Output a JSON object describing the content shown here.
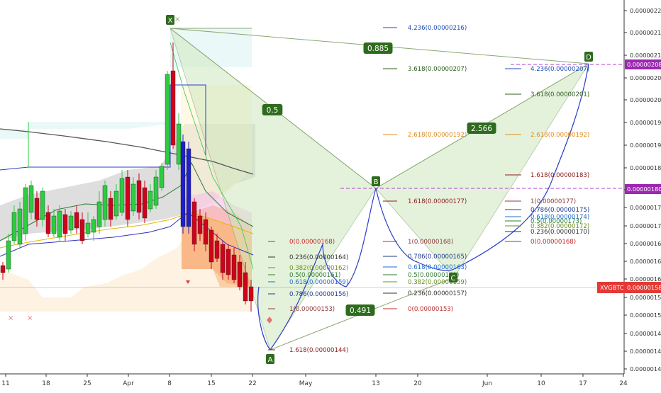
{
  "chart_data": {
    "type": "candlestick",
    "symbol": "XVGBTC",
    "last_price": "0.00000158",
    "ylim": [
      1.39e-06,
      2.22e-06
    ],
    "x_ticks": [
      "11",
      "18",
      "25",
      "Apr",
      "8",
      "15",
      "22",
      "May",
      "13",
      "20",
      "Jun",
      "10",
      "17",
      "24"
    ],
    "y_ticks": [
      "0.00000220",
      "0.00000215",
      "0.00000210",
      "0.00000205",
      "0.00000200",
      "0.00000195",
      "0.00000190",
      "0.00000185",
      "0.00000180",
      "0.00000176",
      "0.00000172",
      "0.00000168",
      "0.00000164",
      "0.00000160",
      "0.00000156",
      "0.00000152",
      "0.00000148",
      "0.00000144",
      "0.00000140"
    ],
    "price_markers": [
      {
        "label": "0.00000208",
        "color": "#9c27b0",
        "value": 2.08e-06
      },
      {
        "label": "0.00000180",
        "color": "#9c27b0",
        "value": 1.8e-06
      }
    ],
    "pattern_points": [
      {
        "label": "X",
        "value": 2.16e-06
      },
      {
        "label": "A",
        "value": 1.44e-06
      },
      {
        "label": "B",
        "value": 1.8e-06
      },
      {
        "label": "C",
        "value": 1.62e-06
      },
      {
        "label": "D",
        "value": 2.08e-06
      }
    ],
    "pattern_ratios": [
      "0.885",
      "0.5",
      "0.491",
      "2.566"
    ],
    "fib_levels": [
      {
        "label": "4.236(0.00000216)",
        "color": "#1e4fb5"
      },
      {
        "label": "3.618(0.00000207)",
        "color": "#2e5e1e"
      },
      {
        "label": "2.618(0.00000192)",
        "color": "#e08a1e"
      },
      {
        "label": "1.618(0.00000177)",
        "color": "#8b1a1a"
      },
      {
        "label": "1(0.00000168)",
        "color": "#8b3a3a"
      },
      {
        "label": "0.786(0.00000165)",
        "color": "#1e3a8a"
      },
      {
        "label": "0.618(0.00000163)",
        "color": "#1e6fd0"
      },
      {
        "label": "0.5(0.00000161)",
        "color": "#2e7d32"
      },
      {
        "label": "0.382(0.00000159)",
        "color": "#6b8e23"
      },
      {
        "label": "0.236(0.00000157)",
        "color": "#333333"
      },
      {
        "label": "0(0.00000153)",
        "color": "#c62828"
      },
      {
        "label": "0(0.00000168)",
        "color": "#c62828"
      },
      {
        "label": "0.236(0.00000164)",
        "color": "#333333"
      },
      {
        "label": "0.382(0.00000162)",
        "color": "#6b8e23"
      },
      {
        "label": "0.5(0.00000161)",
        "color": "#2e7d32"
      },
      {
        "label": "0.618(0.00000159)",
        "color": "#1e6fd0"
      },
      {
        "label": "0.786(0.00000156)",
        "color": "#1e3a8a"
      },
      {
        "label": "1(0.00000153)",
        "color": "#8b3a3a"
      },
      {
        "label": "1.618(0.00000144)",
        "color": "#8b1a1a"
      },
      {
        "label": "4.236(0.00000207)",
        "color": "#1e4fb5"
      },
      {
        "label": "3.618(0.00000201)",
        "color": "#2e5e1e"
      },
      {
        "label": "2.618(0.00000192)",
        "color": "#e08a1e"
      },
      {
        "label": "1.618(0.00000183)",
        "color": "#8b1a1a"
      },
      {
        "label": "1(0.00000177)",
        "color": "#8b3a3a"
      },
      {
        "label": "0.786(0.00000175)",
        "color": "#1e3a8a"
      },
      {
        "label": "0.618(0.00000174)",
        "color": "#1e6fd0"
      },
      {
        "label": "0.5(0.00000173)",
        "color": "#2e7d32"
      },
      {
        "label": "0.382(0.00000172)",
        "color": "#6b8e23"
      },
      {
        "label": "0.236(0.00000170)",
        "color": "#333333"
      },
      {
        "label": "0(0.00000168)",
        "color": "#c62828"
      }
    ],
    "colors": {
      "up_candle": "#2ecc40",
      "down_candle": "#d0021b",
      "blue_candle": "#2020c8",
      "harmonic_line": "#8aa870",
      "projection_curve": "#2a3ec8",
      "marker_green": "#2e6b1e",
      "price_tag": "#e53935",
      "level_magenta": "#b040d0"
    }
  }
}
